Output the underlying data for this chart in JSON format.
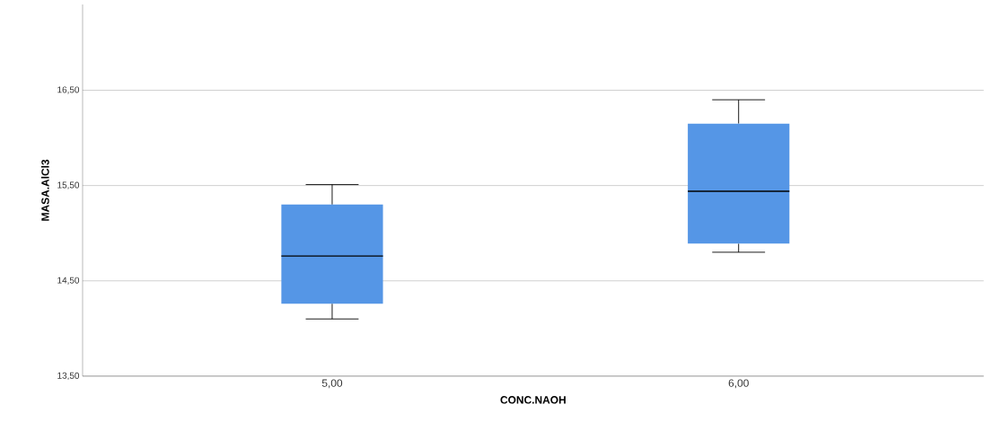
{
  "chart_data": {
    "type": "box",
    "xlabel": "CONC.NAOH",
    "ylabel": "MASA.AlCl3",
    "categories": [
      "5,00",
      "6,00"
    ],
    "boxes": [
      {
        "low": 14.1,
        "q1": 14.26,
        "median": 14.76,
        "q3": 15.3,
        "high": 15.51
      },
      {
        "low": 14.8,
        "q1": 14.89,
        "median": 15.44,
        "q3": 16.15,
        "high": 16.4
      }
    ],
    "color": "#5596e6",
    "ylim": [
      13.5,
      17.4
    ],
    "yticks": [
      {
        "value": 13.5,
        "label": "13,50"
      },
      {
        "value": 14.5,
        "label": "14,50"
      },
      {
        "value": 15.5,
        "label": "15,50"
      },
      {
        "value": 16.5,
        "label": "16,50"
      }
    ],
    "grid": "y"
  }
}
